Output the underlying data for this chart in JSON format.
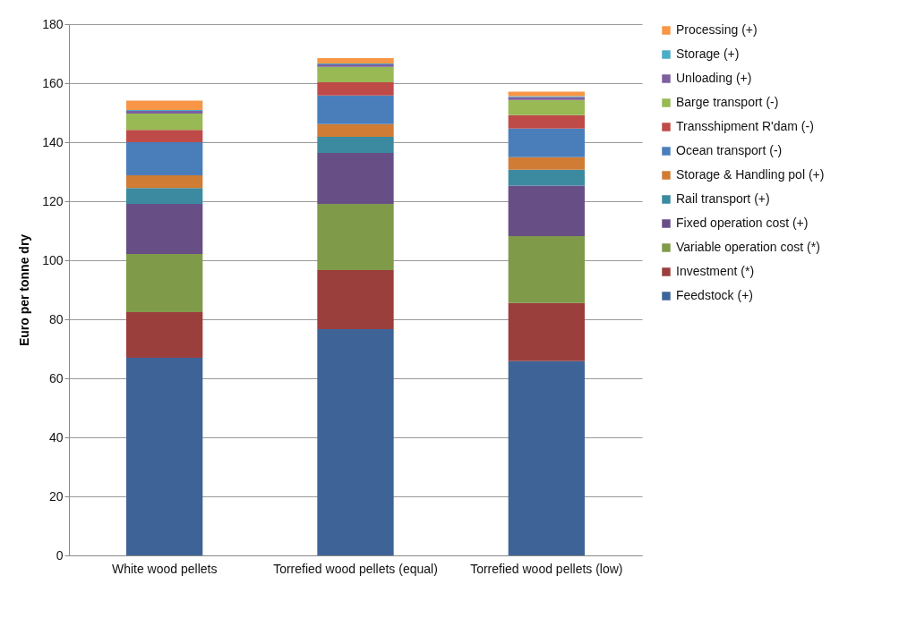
{
  "chart_data": {
    "type": "bar",
    "stacked": true,
    "ylabel": "Euro per tonne dry",
    "categories": [
      "White wood pellets",
      "Torrefied wood pellets (equal)",
      "Torrefied wood pellets (low)"
    ],
    "ylim": [
      0,
      180
    ],
    "yticks": [
      0,
      20,
      40,
      60,
      80,
      100,
      120,
      140,
      160,
      180
    ],
    "grid": "y",
    "legend": "right",
    "series": [
      {
        "name": "Feedstock (+)",
        "color": "#3e6497",
        "values": [
          67,
          76.7,
          65.8
        ]
      },
      {
        "name": "Investment (*)",
        "color": "#9b3f3c",
        "values": [
          15.4,
          20,
          19.7
        ]
      },
      {
        "name": "Variable operation cost (*)",
        "color": "#7f9a48",
        "values": [
          19.7,
          22.4,
          22.7
        ]
      },
      {
        "name": "Fixed operation cost (+)",
        "color": "#674f86",
        "values": [
          17,
          17.3,
          17.1
        ]
      },
      {
        "name": "Rail transport (+)",
        "color": "#3b8aa0",
        "values": [
          5.4,
          5.4,
          5.4
        ]
      },
      {
        "name": "Storage & Handling pol (+)",
        "color": "#d07c35",
        "values": [
          4.3,
          4.3,
          4.2
        ]
      },
      {
        "name": "Ocean transport (-)",
        "color": "#4a7ebb",
        "values": [
          11.2,
          9.7,
          9.7
        ]
      },
      {
        "name": "Transshipment R'dam (-)",
        "color": "#be4b48",
        "values": [
          4.2,
          4.5,
          4.6
        ]
      },
      {
        "name": "Barge transport (-)",
        "color": "#98b954",
        "values": [
          5.5,
          5.2,
          5.1
        ]
      },
      {
        "name": "Unloading (+)",
        "color": "#7d5fa0",
        "values": [
          0.9,
          0.9,
          1
        ]
      },
      {
        "name": "Storage (+)",
        "color": "#4bacc6",
        "values": [
          0.3,
          0.3,
          0.3
        ]
      },
      {
        "name": "Processing (+)",
        "color": "#f79646",
        "values": [
          3.2,
          1.8,
          1.5
        ]
      }
    ]
  }
}
